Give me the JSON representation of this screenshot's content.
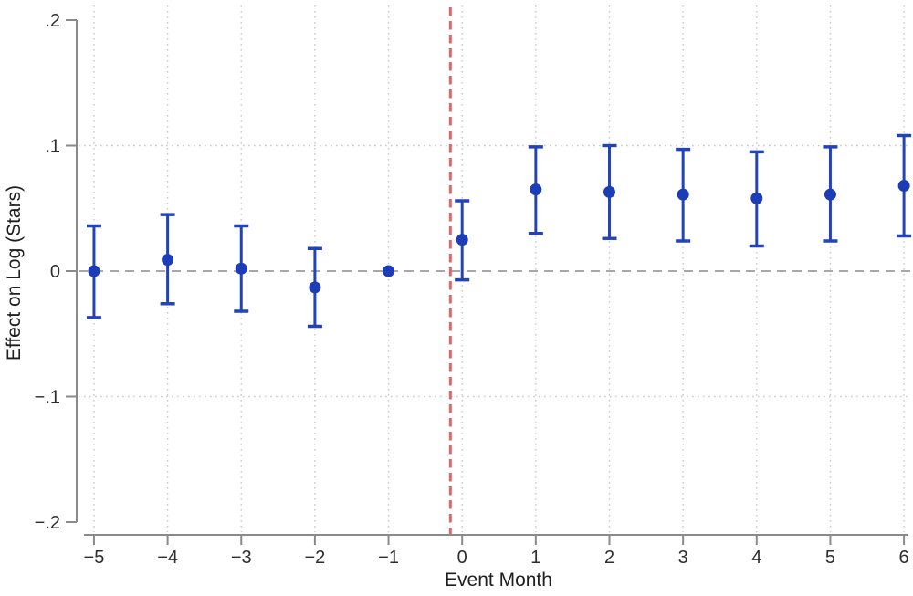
{
  "chart_data": {
    "type": "scatter",
    "subtype": "event-study-error-bars",
    "title": "",
    "xlabel": "Event Month",
    "ylabel": "Effect on Log (Stars)",
    "xlim": [
      -5.6,
      6.15
    ],
    "ylim": [
      -0.2,
      0.2
    ],
    "x_ticks": [
      -5,
      -4,
      -3,
      -2,
      -1,
      0,
      1,
      2,
      3,
      4,
      5,
      6
    ],
    "x_tick_labels": [
      "−5",
      "−4",
      "−3",
      "−2",
      "−1",
      "0",
      "1",
      "2",
      "3",
      "4",
      "5",
      "6"
    ],
    "y_ticks": [
      0.2,
      0.1,
      0,
      -0.1,
      -0.2
    ],
    "y_tick_labels": [
      ".2",
      ".1",
      "0",
      "−.1",
      "−.2"
    ],
    "grid": {
      "vertical_at_x_ticks": true,
      "horizontal_at": [
        0.1,
        -0.1
      ],
      "style": "dotted"
    },
    "zero_line_y": 0,
    "reference_line_x": -0.16,
    "reference_line_style": "dashed",
    "legend": false,
    "series": [
      {
        "name": "estimate",
        "x": [
          -5,
          -4,
          -3,
          -2,
          -1,
          0,
          1,
          2,
          3,
          4,
          5,
          6
        ],
        "y": [
          0.0,
          0.009,
          0.002,
          -0.013,
          0.0,
          0.025,
          0.065,
          0.063,
          0.061,
          0.058,
          0.061,
          0.068
        ],
        "ci_low": [
          -0.037,
          -0.026,
          -0.032,
          -0.044,
          0.0,
          -0.007,
          0.03,
          0.026,
          0.024,
          0.02,
          0.024,
          0.028
        ],
        "ci_high": [
          0.036,
          0.045,
          0.036,
          0.018,
          0.0,
          0.056,
          0.099,
          0.1,
          0.097,
          0.095,
          0.099,
          0.108
        ]
      }
    ],
    "colors": {
      "point": "#1c3db6",
      "ci": "#2343b8",
      "reference_line": "#d96a6a",
      "zero_line": "#a8a8a8",
      "grid": "#c9c9c9",
      "axis": "#8a8a8a",
      "text": "#2e2e2e"
    }
  }
}
